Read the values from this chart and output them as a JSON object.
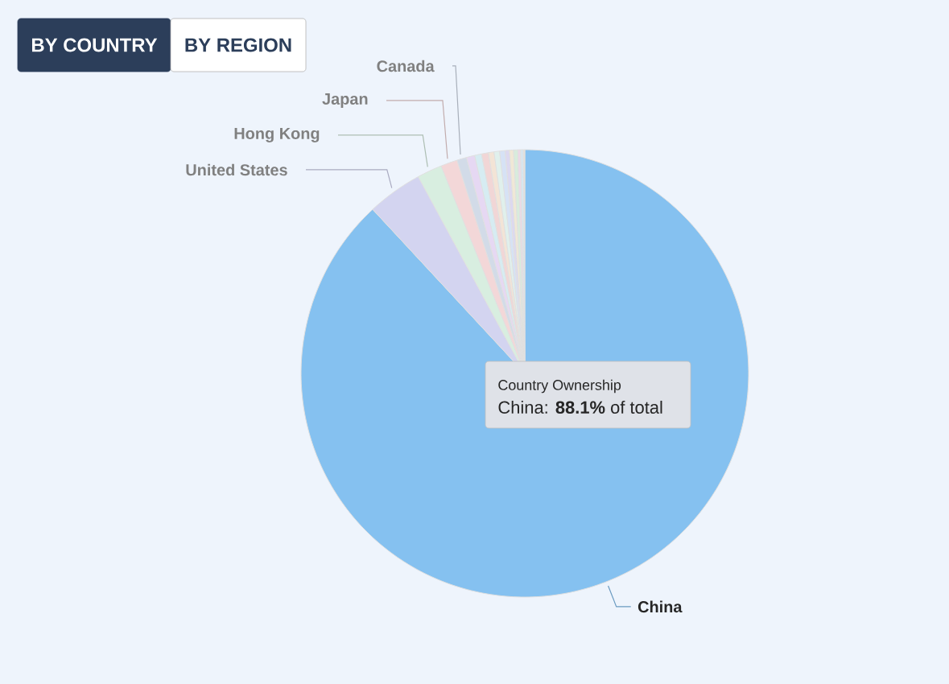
{
  "chart_data": {
    "type": "pie",
    "categories": [
      "China",
      "United States",
      "Hong Kong",
      "Japan",
      "Canada",
      null,
      null,
      null,
      null,
      null,
      null,
      null,
      null,
      null,
      null,
      null,
      null
    ],
    "values": [
      88.1,
      4.0,
      1.8,
      1.2,
      0.7,
      0.6,
      0.5,
      0.5,
      0.4,
      0.4,
      0.4,
      0.3,
      0.3,
      0.3,
      0.2,
      0.2,
      0.1
    ],
    "colors": [
      "#85c1f0",
      "#d3d4f0",
      "#d8eee0",
      "#f3d7d8",
      "#d2dbe8",
      "#e6d8f3",
      "#d6ecf2",
      "#f1d6d6",
      "#f3e4d6",
      "#e0f0ec",
      "#d6e2f5",
      "#dcd8f0",
      "#f0e8d6",
      "#d8ecdc",
      "#ecd8e6",
      "#d6e6f0",
      "#e8e2d6"
    ],
    "annotations": [
      "BY COUNTRY",
      "BY REGION",
      "Country Ownership",
      "China: **88.1%** of total"
    ]
  }
}
